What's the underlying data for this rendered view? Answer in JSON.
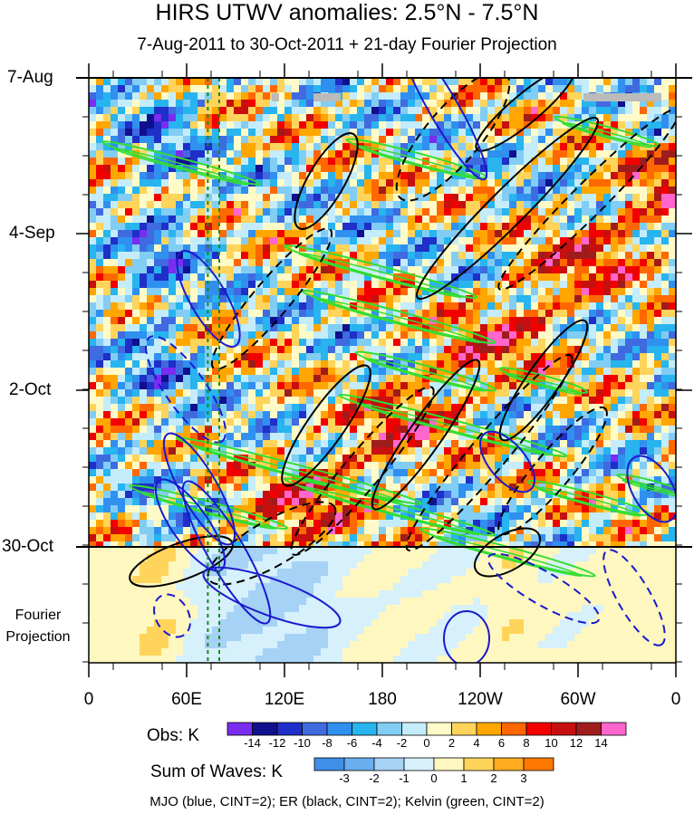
{
  "chart_data": {
    "type": "heatmap",
    "title": "HIRS UTWV anomalies: 2.5°N - 7.5°N",
    "subtitle": "7-Aug-2011 to 30-Oct-2011 + 21-day Fourier Projection",
    "x_ticks": [
      "0",
      "60E",
      "120E",
      "180",
      "120W",
      "60W",
      "0"
    ],
    "x_range": [
      0,
      360
    ],
    "y_ticks": [
      "7-Aug",
      "4-Sep",
      "2-Oct",
      "30-Oct"
    ],
    "y_range_days": [
      0,
      105
    ],
    "projection_label": [
      "Fourier",
      "Projection"
    ],
    "obs_colorbar": {
      "label": "Obs: K",
      "levels": [
        "-14",
        "-12",
        "-10",
        "-8",
        "-6",
        "-4",
        "-2",
        "0",
        "2",
        "4",
        "6",
        "8",
        "10",
        "12",
        "14"
      ],
      "colors": [
        "#7a2cf0",
        "#10108e",
        "#1f2fc8",
        "#3f6ae0",
        "#2f90f0",
        "#27b4ef",
        "#82cdf3",
        "#c5ecfb",
        "#fffbc8",
        "#ffd45a",
        "#ffa600",
        "#ff6800",
        "#f20000",
        "#c80f0f",
        "#a01c1c",
        "#ff66cc"
      ]
    },
    "waves_colorbar": {
      "label": "Sum of Waves: K",
      "levels": [
        "-3",
        "-2",
        "-1",
        "0",
        "1",
        "2",
        "3"
      ],
      "colors": [
        "#3f8ee8",
        "#6aaef0",
        "#a6d2f6",
        "#d6f0fc",
        "#fff7c0",
        "#ffd45a",
        "#ffab1e",
        "#ff7800"
      ]
    },
    "contour_legend": "MJO (blue, CINT=2); ER (black, CINT=2); Kelvin (green, CINT=2)",
    "series": [
      {
        "name": "MJO",
        "color": "#1a1acc"
      },
      {
        "name": "ER",
        "color": "#000000"
      },
      {
        "name": "Kelvin",
        "color": "#33dd33"
      }
    ],
    "reference_lines_lon": [
      73,
      80
    ]
  }
}
